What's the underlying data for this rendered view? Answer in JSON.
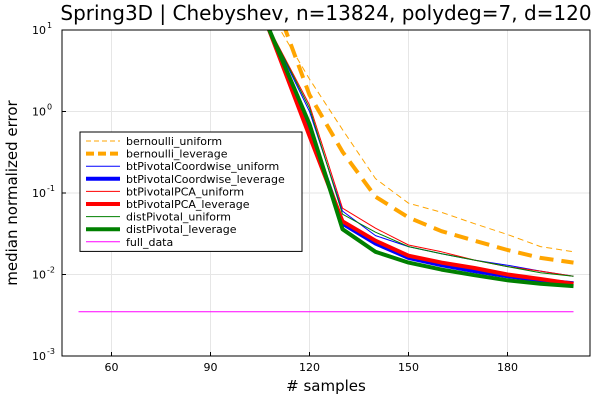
{
  "chart_data": {
    "type": "line",
    "title": "Spring3D | Chebyshev, n=13824, polydeg=7, d=120",
    "xlabel": "# samples",
    "ylabel": "median normalized error",
    "xlim": [
      45,
      205
    ],
    "ylim": [
      0.001,
      10
    ],
    "y_scale": "log",
    "x_ticks": [
      60,
      90,
      120,
      150,
      180
    ],
    "y_ticks": [
      {
        "value": 0.001,
        "base": "10",
        "exp": "-3"
      },
      {
        "value": 0.01,
        "base": "10",
        "exp": "-2"
      },
      {
        "value": 0.1,
        "base": "10",
        "exp": "-1"
      },
      {
        "value": 1,
        "base": "10",
        "exp": "0"
      },
      {
        "value": 10,
        "base": "10",
        "exp": "1"
      }
    ],
    "grid": true,
    "legend_position": "center-left",
    "series": [
      {
        "name": "bernoulli_uniform",
        "color": "#FFA500",
        "width": 1,
        "dash": "6,4",
        "x": [
          110,
          120,
          130,
          140,
          150,
          160,
          170,
          180,
          190,
          200
        ],
        "y": [
          12,
          2.5,
          0.6,
          0.15,
          0.075,
          0.058,
          0.042,
          0.031,
          0.022,
          0.019
        ]
      },
      {
        "name": "bernoulli_leverage",
        "color": "#FFA500",
        "width": 4,
        "dash": "14,8",
        "x": [
          112,
          120,
          130,
          140,
          150,
          160,
          170,
          180,
          190,
          200
        ],
        "y": [
          12,
          1.6,
          0.32,
          0.09,
          0.05,
          0.034,
          0.026,
          0.02,
          0.016,
          0.014
        ]
      },
      {
        "name": "btPivotalCoordwise_uniform",
        "color": "#0000FF",
        "width": 1,
        "dash": "",
        "x": [
          107,
          120,
          130,
          140,
          150,
          160,
          170,
          180,
          190,
          200
        ],
        "y": [
          12,
          1.0,
          0.06,
          0.03,
          0.022,
          0.018,
          0.015,
          0.013,
          0.011,
          0.0095
        ]
      },
      {
        "name": "btPivotalCoordwise_leverage",
        "color": "#0000FF",
        "width": 4,
        "dash": "",
        "x": [
          107,
          120,
          130,
          140,
          150,
          160,
          170,
          180,
          190,
          200
        ],
        "y": [
          12,
          0.6,
          0.042,
          0.024,
          0.016,
          0.013,
          0.011,
          0.0095,
          0.0085,
          0.0078
        ]
      },
      {
        "name": "btPivotalPCA_uniform",
        "color": "#FF0000",
        "width": 1,
        "dash": "",
        "x": [
          107,
          120,
          130,
          140,
          150,
          160,
          170,
          180,
          190,
          200
        ],
        "y": [
          12,
          1.2,
          0.065,
          0.037,
          0.023,
          0.019,
          0.015,
          0.0125,
          0.011,
          0.0095
        ]
      },
      {
        "name": "btPivotalPCA_leverage",
        "color": "#FF0000",
        "width": 4,
        "dash": "",
        "x": [
          107,
          120,
          130,
          140,
          150,
          160,
          170,
          180,
          190,
          200
        ],
        "y": [
          12,
          0.5,
          0.045,
          0.026,
          0.017,
          0.014,
          0.012,
          0.01,
          0.0088,
          0.0077
        ]
      },
      {
        "name": "distPivotal_uniform",
        "color": "#008000",
        "width": 1,
        "dash": "",
        "x": [
          107,
          120,
          130,
          140,
          150,
          160,
          170,
          180,
          190,
          200
        ],
        "y": [
          12,
          1.1,
          0.055,
          0.033,
          0.022,
          0.018,
          0.015,
          0.0125,
          0.0105,
          0.0095
        ]
      },
      {
        "name": "distPivotal_leverage",
        "color": "#008000",
        "width": 4,
        "dash": "",
        "x": [
          107,
          120,
          130,
          140,
          150,
          160,
          170,
          180,
          190,
          200
        ],
        "y": [
          12,
          0.7,
          0.036,
          0.019,
          0.014,
          0.0115,
          0.0098,
          0.0085,
          0.0077,
          0.0072
        ]
      },
      {
        "name": "full_data",
        "color": "#FF00FF",
        "width": 1,
        "dash": "",
        "x": [
          50,
          200
        ],
        "y": [
          0.0035,
          0.0035
        ]
      }
    ]
  }
}
